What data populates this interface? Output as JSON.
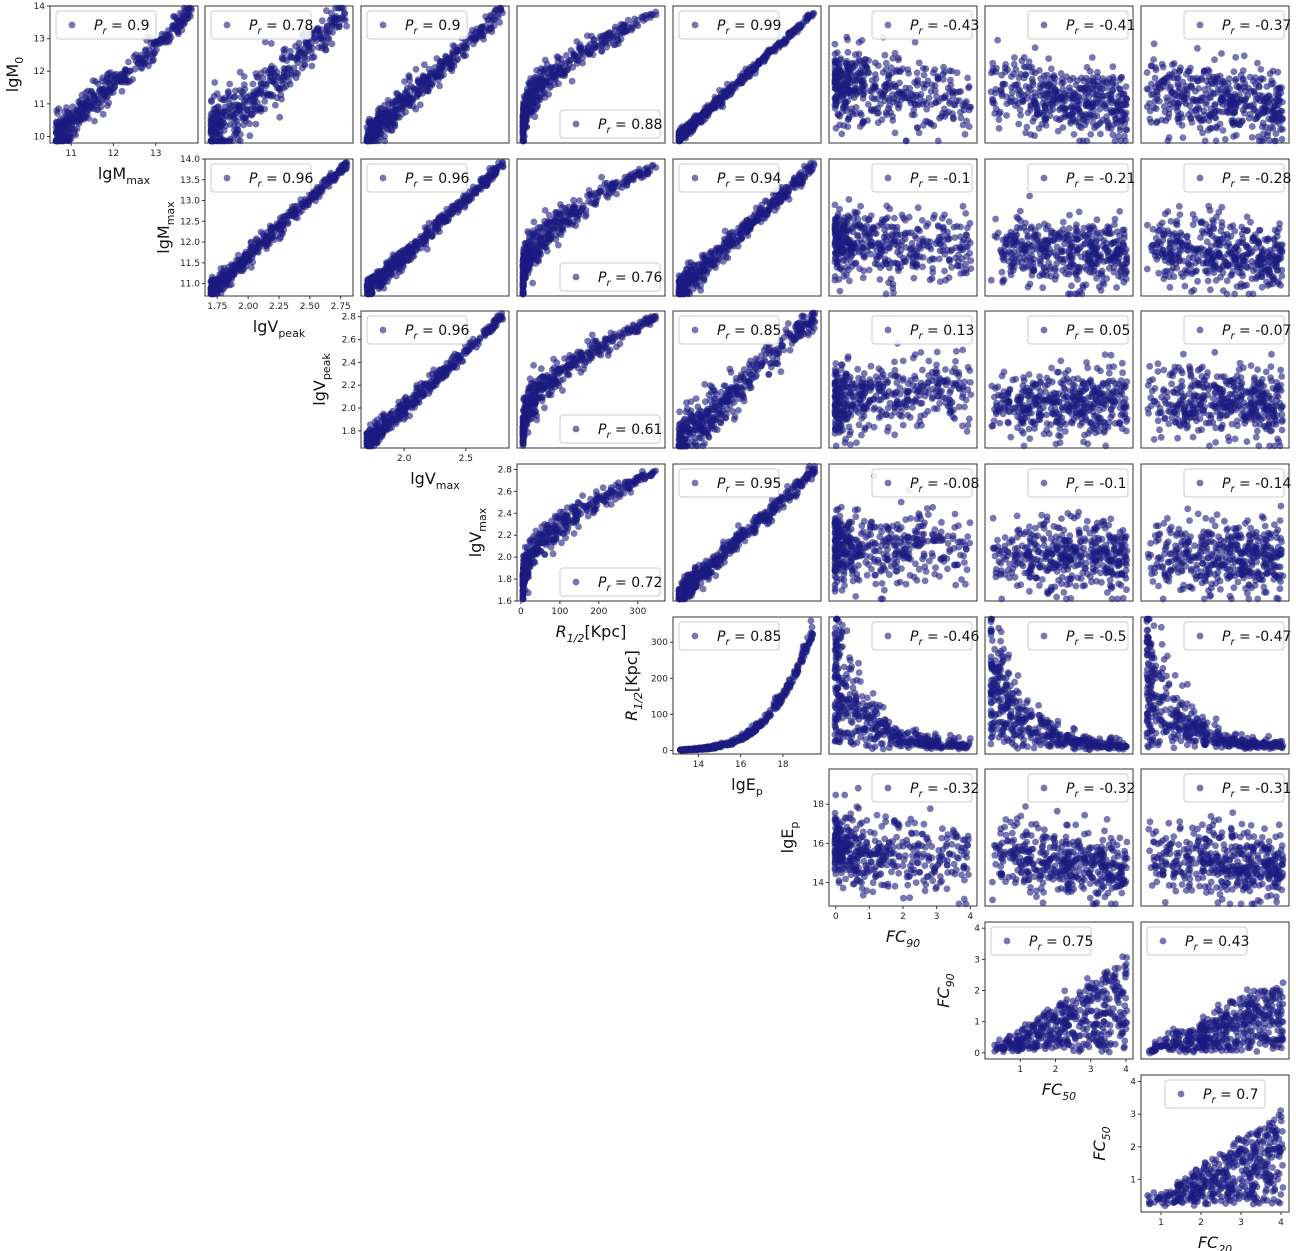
{
  "colors": {
    "point": "#1a1a80",
    "frame": "#333333",
    "legend_frame": "#cccccc"
  },
  "chart_data": {
    "type": "scatter",
    "layout": "corner-matrix",
    "legend_prefix": "P",
    "legend_sub": "r",
    "variables": [
      {
        "id": "lgM0",
        "label": "lgM",
        "sub": "0",
        "italic": false
      },
      {
        "id": "lgMmax",
        "label": "lgM",
        "sub": "max",
        "italic": false
      },
      {
        "id": "lgVpeak",
        "label": "lgV",
        "sub": "peak",
        "italic": false
      },
      {
        "id": "lgVmax",
        "label": "lgV",
        "sub": "max",
        "italic": false
      },
      {
        "id": "R12",
        "label": "R",
        "sub": "1/2",
        "suffix": "[Kpc]",
        "italic": true
      },
      {
        "id": "lgEp",
        "label": "lgE",
        "sub": "p",
        "italic": false
      },
      {
        "id": "FC90",
        "label": "FC",
        "sub": "90",
        "italic": true
      },
      {
        "id": "FC50",
        "label": "FC",
        "sub": "50",
        "italic": true
      },
      {
        "id": "FC20",
        "label": "FC",
        "sub": "20",
        "italic": true
      }
    ],
    "axes": [
      {
        "row_y": "lgM0",
        "x_of": "lgMmax",
        "xticks": [
          "11",
          "12",
          "13"
        ],
        "yticks": [
          "10",
          "11",
          "12",
          "13",
          "14"
        ],
        "xlim": [
          10.5,
          14
        ],
        "ylim": [
          9.8,
          14
        ]
      },
      {
        "row_y": "lgMmax",
        "x_of": "lgVpeak",
        "xticks": [
          "1.75",
          "2.00",
          "2.25",
          "2.50",
          "2.75"
        ],
        "yticks": [
          "11.0",
          "11.5",
          "12.0",
          "12.5",
          "13.0",
          "13.5",
          "14.0"
        ],
        "xlim": [
          1.65,
          2.85
        ],
        "ylim": [
          10.7,
          14
        ]
      },
      {
        "row_y": "lgVpeak",
        "x_of": "lgVmax",
        "xticks": [
          "2.0",
          "2.5"
        ],
        "yticks": [
          "1.8",
          "2.0",
          "2.2",
          "2.4",
          "2.6",
          "2.8"
        ],
        "xlim": [
          1.65,
          2.85
        ],
        "ylim": [
          1.65,
          2.85
        ]
      },
      {
        "row_y": "lgVmax",
        "x_of": "R12",
        "xticks": [
          "0",
          "100",
          "200",
          "300"
        ],
        "yticks": [
          "1.6",
          "1.8",
          "2.0",
          "2.2",
          "2.4",
          "2.6",
          "2.8"
        ],
        "xlim": [
          -10,
          370
        ],
        "ylim": [
          1.6,
          2.85
        ]
      },
      {
        "row_y": "R12",
        "x_of": "lgEp",
        "xticks": [
          "14",
          "16",
          "18"
        ],
        "yticks": [
          "0",
          "100",
          "200",
          "300"
        ],
        "xlim": [
          12.8,
          19.8
        ],
        "ylim": [
          -10,
          370
        ]
      },
      {
        "row_y": "lgEp",
        "x_of": "FC90",
        "xticks": [
          "0",
          "1",
          "2",
          "3",
          "4"
        ],
        "yticks": [
          "14",
          "16",
          "18"
        ],
        "xlim": [
          -0.2,
          4.2
        ],
        "ylim": [
          12.8,
          19.8
        ]
      },
      {
        "row_y": "FC90",
        "x_of": "FC50",
        "xticks": [
          "1",
          "2",
          "3",
          "4"
        ],
        "yticks": [
          "0",
          "1",
          "2",
          "3",
          "4"
        ],
        "xlim": [
          0.0,
          4.2
        ],
        "ylim": [
          -0.2,
          4.2
        ]
      },
      {
        "row_y": "FC50",
        "x_of": "FC20",
        "xticks": [
          "1",
          "2",
          "3",
          "4"
        ],
        "yticks": [
          "1",
          "2",
          "3",
          "4"
        ],
        "xlim": [
          0.5,
          4.2
        ],
        "ylim": [
          0.0,
          4.2
        ]
      }
    ],
    "panels": [
      {
        "row": 0,
        "col": 0,
        "x": "lgMmax",
        "y": "lgM0",
        "pr": "0.9",
        "legend": "top-left"
      },
      {
        "row": 0,
        "col": 1,
        "x": "lgVpeak",
        "y": "lgM0",
        "pr": "0.78",
        "legend": "top-left"
      },
      {
        "row": 0,
        "col": 2,
        "x": "lgVmax",
        "y": "lgM0",
        "pr": "0.9",
        "legend": "top-left"
      },
      {
        "row": 0,
        "col": 3,
        "x": "R12",
        "y": "lgM0",
        "pr": "0.88",
        "legend": "lower-right"
      },
      {
        "row": 0,
        "col": 4,
        "x": "lgEp",
        "y": "lgM0",
        "pr": "0.99",
        "legend": "top-left"
      },
      {
        "row": 0,
        "col": 5,
        "x": "FC90",
        "y": "lgM0",
        "pr": "-0.43",
        "legend": "top-right"
      },
      {
        "row": 0,
        "col": 6,
        "x": "FC50",
        "y": "lgM0",
        "pr": "-0.41",
        "legend": "top-right"
      },
      {
        "row": 0,
        "col": 7,
        "x": "FC20",
        "y": "lgM0",
        "pr": "-0.37",
        "legend": "top-right"
      },
      {
        "row": 1,
        "col": 1,
        "x": "lgVpeak",
        "y": "lgMmax",
        "pr": "0.96",
        "legend": "top-left"
      },
      {
        "row": 1,
        "col": 2,
        "x": "lgVmax",
        "y": "lgMmax",
        "pr": "0.96",
        "legend": "top-left"
      },
      {
        "row": 1,
        "col": 3,
        "x": "R12",
        "y": "lgMmax",
        "pr": "0.76",
        "legend": "lower-right"
      },
      {
        "row": 1,
        "col": 4,
        "x": "lgEp",
        "y": "lgMmax",
        "pr": "0.94",
        "legend": "top-left"
      },
      {
        "row": 1,
        "col": 5,
        "x": "FC90",
        "y": "lgMmax",
        "pr": "-0.1",
        "legend": "top-right"
      },
      {
        "row": 1,
        "col": 6,
        "x": "FC50",
        "y": "lgMmax",
        "pr": "-0.21",
        "legend": "top-right"
      },
      {
        "row": 1,
        "col": 7,
        "x": "FC20",
        "y": "lgMmax",
        "pr": "-0.28",
        "legend": "top-right"
      },
      {
        "row": 2,
        "col": 2,
        "x": "lgVmax",
        "y": "lgVpeak",
        "pr": "0.96",
        "legend": "top-left"
      },
      {
        "row": 2,
        "col": 3,
        "x": "R12",
        "y": "lgVpeak",
        "pr": "0.61",
        "legend": "lower-right"
      },
      {
        "row": 2,
        "col": 4,
        "x": "lgEp",
        "y": "lgVpeak",
        "pr": "0.85",
        "legend": "top-left"
      },
      {
        "row": 2,
        "col": 5,
        "x": "FC90",
        "y": "lgVpeak",
        "pr": "0.13",
        "legend": "top-right"
      },
      {
        "row": 2,
        "col": 6,
        "x": "FC50",
        "y": "lgVpeak",
        "pr": "0.05",
        "legend": "top-right"
      },
      {
        "row": 2,
        "col": 7,
        "x": "FC20",
        "y": "lgVpeak",
        "pr": "-0.07",
        "legend": "top-right"
      },
      {
        "row": 3,
        "col": 3,
        "x": "R12",
        "y": "lgVmax",
        "pr": "0.72",
        "legend": "lower-right"
      },
      {
        "row": 3,
        "col": 4,
        "x": "lgEp",
        "y": "lgVmax",
        "pr": "0.95",
        "legend": "top-left"
      },
      {
        "row": 3,
        "col": 5,
        "x": "FC90",
        "y": "lgVmax",
        "pr": "-0.08",
        "legend": "top-right"
      },
      {
        "row": 3,
        "col": 6,
        "x": "FC50",
        "y": "lgVmax",
        "pr": "-0.1",
        "legend": "top-right"
      },
      {
        "row": 3,
        "col": 7,
        "x": "FC20",
        "y": "lgVmax",
        "pr": "-0.14",
        "legend": "top-right"
      },
      {
        "row": 4,
        "col": 4,
        "x": "lgEp",
        "y": "R12",
        "pr": "0.85",
        "legend": "top-left"
      },
      {
        "row": 4,
        "col": 5,
        "x": "FC90",
        "y": "R12",
        "pr": "-0.46",
        "legend": "top-right"
      },
      {
        "row": 4,
        "col": 6,
        "x": "FC50",
        "y": "R12",
        "pr": "-0.5",
        "legend": "top-right"
      },
      {
        "row": 4,
        "col": 7,
        "x": "FC20",
        "y": "R12",
        "pr": "-0.47",
        "legend": "top-right"
      },
      {
        "row": 5,
        "col": 5,
        "x": "FC90",
        "y": "lgEp",
        "pr": "-0.32",
        "legend": "top-right"
      },
      {
        "row": 5,
        "col": 6,
        "x": "FC50",
        "y": "lgEp",
        "pr": "-0.32",
        "legend": "top-right"
      },
      {
        "row": 5,
        "col": 7,
        "x": "FC20",
        "y": "lgEp",
        "pr": "-0.31",
        "legend": "top-right"
      },
      {
        "row": 6,
        "col": 6,
        "x": "FC50",
        "y": "FC90",
        "pr": "0.75",
        "legend": "top-left"
      },
      {
        "row": 6,
        "col": 7,
        "x": "FC20",
        "y": "FC90",
        "pr": "0.43",
        "legend": "top-left"
      },
      {
        "row": 7,
        "col": 7,
        "x": "FC20",
        "y": "FC50",
        "pr": "0.7",
        "legend": "top-center"
      }
    ]
  }
}
